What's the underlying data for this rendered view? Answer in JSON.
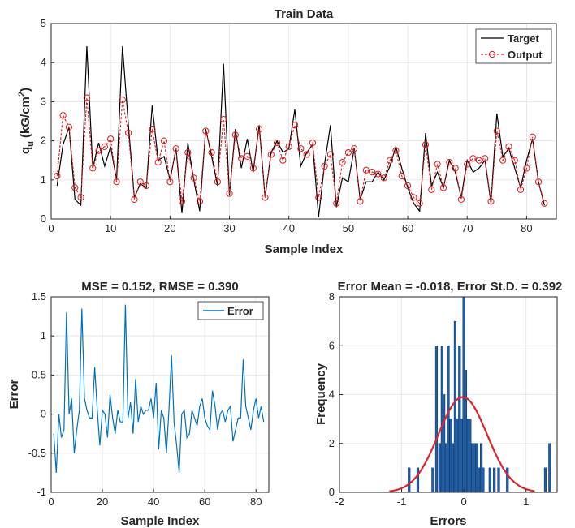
{
  "chart_data": [
    {
      "type": "line",
      "title": "Train Data",
      "xlabel": "Sample Index",
      "ylabel": "q",
      "ylabel_sub": "u",
      "ylabel_unit": " (kG/cm",
      "ylabel_sup": "2",
      "ylabel_close": ")",
      "xlim": [
        0,
        85
      ],
      "ylim": [
        0,
        5
      ],
      "xticks": [
        0,
        10,
        20,
        30,
        40,
        50,
        60,
        70,
        80
      ],
      "yticks": [
        0,
        1,
        2,
        3,
        4,
        5
      ],
      "grid": true,
      "legend_position": "top-right",
      "series": [
        {
          "name": "Target",
          "color": "#000000",
          "style": "solid",
          "values": [
            0.85,
            1.9,
            2.35,
            0.5,
            0.35,
            4.42,
            1.3,
            1.95,
            1.35,
            1.85,
            1.0,
            4.42,
            2.4,
            0.55,
            0.9,
            0.8,
            2.9,
            1.5,
            1.6,
            1.0,
            1.8,
            0.15,
            1.95,
            1.0,
            0.2,
            2.3,
            1.6,
            0.85,
            3.97,
            0.6,
            2.3,
            1.3,
            2.05,
            1.2,
            2.4,
            0.55,
            1.7,
            2.0,
            1.7,
            1.8,
            2.8,
            1.35,
            1.7,
            1.9,
            0.05,
            1.4,
            2.4,
            0.3,
            1.05,
            0.95,
            1.8,
            0.5,
            0.95,
            0.95,
            1.2,
            1.0,
            1.35,
            1.85,
            1.3,
            0.8,
            0.4,
            0.2,
            2.2,
            0.85,
            1.2,
            0.8,
            1.5,
            1.2,
            0.55,
            1.5,
            1.2,
            1.3,
            1.5,
            0.4,
            2.7,
            1.6,
            1.8,
            1.3,
            0.8,
            1.5,
            2.05,
            0.95,
            0.35
          ]
        },
        {
          "name": "Output",
          "color": "#e0191c",
          "style": "dashed-circle",
          "values": [
            1.1,
            2.65,
            2.35,
            0.8,
            0.55,
            3.1,
            1.3,
            1.75,
            1.85,
            2.05,
            0.95,
            3.05,
            2.2,
            0.5,
            0.95,
            0.85,
            2.3,
            1.45,
            2.0,
            0.95,
            1.8,
            0.45,
            1.7,
            1.05,
            0.45,
            2.25,
            1.7,
            0.95,
            2.55,
            0.65,
            2.15,
            1.55,
            1.6,
            1.3,
            2.3,
            0.55,
            1.65,
            1.95,
            1.5,
            1.85,
            2.4,
            1.8,
            1.65,
            1.95,
            0.55,
            1.35,
            1.65,
            0.4,
            1.45,
            1.7,
            1.8,
            0.45,
            1.25,
            1.2,
            1.15,
            1.05,
            1.5,
            1.75,
            1.1,
            0.85,
            0.55,
            0.4,
            1.9,
            0.75,
            1.4,
            0.8,
            1.45,
            1.3,
            0.5,
            1.4,
            1.55,
            1.5,
            1.55,
            0.45,
            2.25,
            1.5,
            1.85,
            1.5,
            0.75,
            1.3,
            2.1,
            0.95,
            0.4
          ]
        }
      ]
    },
    {
      "type": "line",
      "title": "MSE = 0.152, RMSE = 0.390",
      "xlabel": "Sample Index",
      "ylabel": "Error",
      "xlim": [
        0,
        85
      ],
      "ylim": [
        -1,
        1.5
      ],
      "xticks": [
        0,
        20,
        40,
        60,
        80
      ],
      "yticks": [
        -1,
        -0.5,
        0,
        0.5,
        1,
        1.5
      ],
      "ytick_labels": [
        "-1",
        "-0.5",
        "0",
        "0.5",
        "1",
        "1.5"
      ],
      "grid": true,
      "legend_position": "top-right",
      "series": [
        {
          "name": "Error",
          "color": "#0072bd",
          "values": [
            -0.25,
            -0.75,
            0.0,
            -0.3,
            -0.2,
            1.3,
            0.0,
            0.2,
            -0.5,
            -0.2,
            0.05,
            1.35,
            0.2,
            0.05,
            -0.05,
            -0.05,
            0.6,
            0.05,
            -0.4,
            0.05,
            0.0,
            -0.3,
            0.25,
            -0.05,
            -0.25,
            0.05,
            -0.1,
            -0.1,
            1.4,
            -0.05,
            0.15,
            -0.25,
            0.45,
            -0.1,
            0.1,
            0.0,
            0.05,
            0.05,
            0.2,
            -0.05,
            0.4,
            -0.45,
            0.05,
            -0.05,
            -0.5,
            0.05,
            0.75,
            -0.1,
            -0.4,
            -0.75,
            0.0,
            0.05,
            -0.3,
            -0.25,
            0.05,
            -0.05,
            -0.15,
            0.1,
            0.2,
            -0.05,
            -0.15,
            -0.2,
            0.3,
            0.1,
            -0.2,
            0.0,
            0.05,
            -0.1,
            0.05,
            0.1,
            -0.35,
            -0.2,
            -0.05,
            -0.05,
            0.7,
            0.1,
            -0.05,
            -0.2,
            0.05,
            0.2,
            -0.05,
            0.1,
            -0.1
          ]
        }
      ]
    },
    {
      "type": "bar",
      "subtype": "histogram-with-normal-fit",
      "title": "Error Mean = -0.018, Error St.D. = 0.392",
      "xlabel": "Errors",
      "ylabel": "Frequency",
      "xlim": [
        -2,
        1.5
      ],
      "ylim": [
        0,
        8
      ],
      "xticks": [
        -2,
        -1,
        0,
        1
      ],
      "yticks": [
        0,
        2,
        4,
        6,
        8
      ],
      "grid": true,
      "bar_color": "#1f5fa8",
      "fit_color": "#e0232c",
      "fit_mean": -0.018,
      "fit_std": 0.392,
      "fit_peak": 3.9,
      "bin_width": 0.035,
      "bins": [
        {
          "x": -0.88,
          "count": 1
        },
        {
          "x": -0.74,
          "count": 1
        },
        {
          "x": -0.5,
          "count": 1
        },
        {
          "x": -0.44,
          "count": 6
        },
        {
          "x": -0.39,
          "count": 2
        },
        {
          "x": -0.35,
          "count": 6
        },
        {
          "x": -0.32,
          "count": 4
        },
        {
          "x": -0.28,
          "count": 2
        },
        {
          "x": -0.25,
          "count": 6
        },
        {
          "x": -0.21,
          "count": 3
        },
        {
          "x": -0.18,
          "count": 2
        },
        {
          "x": -0.14,
          "count": 7
        },
        {
          "x": -0.11,
          "count": 3
        },
        {
          "x": -0.07,
          "count": 6
        },
        {
          "x": -0.04,
          "count": 3
        },
        {
          "x": 0.0,
          "count": 8
        },
        {
          "x": 0.03,
          "count": 5
        },
        {
          "x": 0.07,
          "count": 3
        },
        {
          "x": 0.1,
          "count": 3
        },
        {
          "x": 0.14,
          "count": 2
        },
        {
          "x": 0.17,
          "count": 2
        },
        {
          "x": 0.21,
          "count": 2
        },
        {
          "x": 0.24,
          "count": 1
        },
        {
          "x": 0.28,
          "count": 2
        },
        {
          "x": 0.31,
          "count": 1
        },
        {
          "x": 0.42,
          "count": 1
        },
        {
          "x": 0.49,
          "count": 1
        },
        {
          "x": 0.56,
          "count": 1
        },
        {
          "x": 0.7,
          "count": 1
        },
        {
          "x": 1.31,
          "count": 1
        },
        {
          "x": 1.38,
          "count": 2
        }
      ]
    }
  ]
}
